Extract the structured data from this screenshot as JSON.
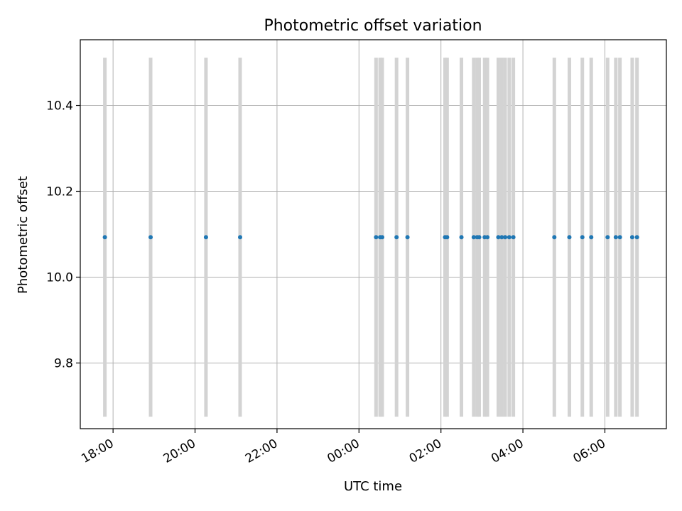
{
  "chart_data": {
    "type": "scatter",
    "title": "Photometric offset variation",
    "xlabel": "UTC time",
    "ylabel": "Photometric offset",
    "x_unit": "UTC time (HH:MM), ticks every 2 hours",
    "xlim": [
      "17:12",
      "07:30"
    ],
    "ylim": [
      9.647,
      10.553
    ],
    "x_ticks": [
      "18:00",
      "20:00",
      "22:00",
      "00:00",
      "02:00",
      "04:00",
      "06:00"
    ],
    "y_ticks": [
      "9.8",
      "10.0",
      "10.2",
      "10.4"
    ],
    "y_tick_values": [
      9.8,
      10.0,
      10.2,
      10.4
    ],
    "grid": true,
    "x_tick_rotation": "30deg",
    "series": [
      {
        "color": "#1f77b4",
        "error_color": "#d3d3d3",
        "points": [
          {
            "x": "17:48",
            "y": 10.093,
            "yerr": 0.418
          },
          {
            "x": "18:55",
            "y": 10.093,
            "yerr": 0.418
          },
          {
            "x": "20:16",
            "y": 10.093,
            "yerr": 0.418
          },
          {
            "x": "21:06",
            "y": 10.093,
            "yerr": 0.418
          },
          {
            "x": "00:25",
            "y": 10.093,
            "yerr": 0.418
          },
          {
            "x": "00:31",
            "y": 10.093,
            "yerr": 0.418
          },
          {
            "x": "00:34",
            "y": 10.093,
            "yerr": 0.418
          },
          {
            "x": "00:55",
            "y": 10.093,
            "yerr": 0.418
          },
          {
            "x": "01:11",
            "y": 10.093,
            "yerr": 0.418
          },
          {
            "x": "02:06",
            "y": 10.093,
            "yerr": 0.418
          },
          {
            "x": "02:09",
            "y": 10.093,
            "yerr": 0.418
          },
          {
            "x": "02:30",
            "y": 10.093,
            "yerr": 0.418
          },
          {
            "x": "02:48",
            "y": 10.093,
            "yerr": 0.418
          },
          {
            "x": "02:53",
            "y": 10.093,
            "yerr": 0.418
          },
          {
            "x": "02:56",
            "y": 10.093,
            "yerr": 0.418
          },
          {
            "x": "03:04",
            "y": 10.093,
            "yerr": 0.418
          },
          {
            "x": "03:08",
            "y": 10.093,
            "yerr": 0.418
          },
          {
            "x": "03:24",
            "y": 10.093,
            "yerr": 0.418
          },
          {
            "x": "03:29",
            "y": 10.093,
            "yerr": 0.418
          },
          {
            "x": "03:34",
            "y": 10.093,
            "yerr": 0.418
          },
          {
            "x": "03:40",
            "y": 10.093,
            "yerr": 0.418
          },
          {
            "x": "03:46",
            "y": 10.093,
            "yerr": 0.418
          },
          {
            "x": "04:46",
            "y": 10.093,
            "yerr": 0.418
          },
          {
            "x": "05:08",
            "y": 10.093,
            "yerr": 0.418
          },
          {
            "x": "05:27",
            "y": 10.093,
            "yerr": 0.418
          },
          {
            "x": "05:40",
            "y": 10.093,
            "yerr": 0.418
          },
          {
            "x": "06:04",
            "y": 10.093,
            "yerr": 0.418
          },
          {
            "x": "06:16",
            "y": 10.093,
            "yerr": 0.418
          },
          {
            "x": "06:22",
            "y": 10.093,
            "yerr": 0.418
          },
          {
            "x": "06:40",
            "y": 10.093,
            "yerr": 0.418
          },
          {
            "x": "06:47",
            "y": 10.093,
            "yerr": 0.418
          }
        ]
      }
    ]
  }
}
